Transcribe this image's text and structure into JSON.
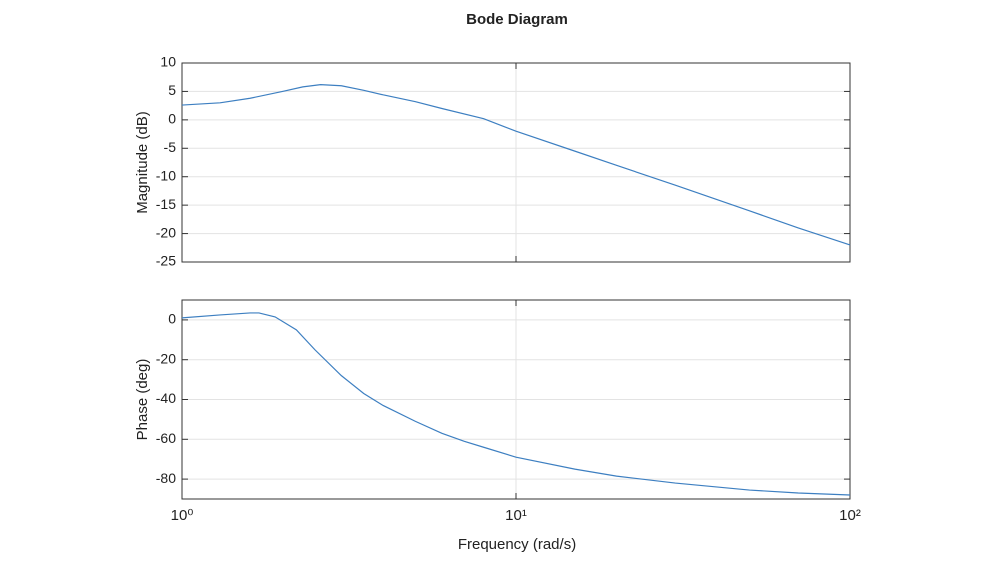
{
  "chart_data": [
    {
      "type": "line",
      "title": "Bode Diagram",
      "ylabel": "Magnitude (dB)",
      "xscale": "log",
      "grid": true,
      "xlim": [
        1,
        100
      ],
      "xticks": [
        1,
        10,
        100
      ],
      "ylim": [
        -25,
        10
      ],
      "yticks": [
        -25,
        -20,
        -15,
        -10,
        -5,
        0,
        5,
        10
      ],
      "x": [
        1,
        1.3,
        1.6,
        2,
        2.3,
        2.6,
        3,
        3.5,
        4,
        5,
        6,
        8,
        10,
        15,
        20,
        30,
        50,
        70,
        100
      ],
      "series": [
        {
          "color": "#3d7fc1",
          "values": [
            2.6,
            3.0,
            3.8,
            5.0,
            5.8,
            6.2,
            6.0,
            5.2,
            4.4,
            3.2,
            2.0,
            0.2,
            -2.0,
            -5.5,
            -8.0,
            -11.5,
            -16.0,
            -19.0,
            -22.0
          ]
        }
      ]
    },
    {
      "type": "line",
      "ylabel": "Phase (deg)",
      "xlabel": "Frequency (rad/s)",
      "xscale": "log",
      "grid": true,
      "xlim": [
        1,
        100
      ],
      "xticks": [
        {
          "value": 1,
          "label": "10⁰"
        },
        {
          "value": 10,
          "label": "10¹"
        },
        {
          "value": 100,
          "label": "10²"
        }
      ],
      "ylim": [
        -90,
        10
      ],
      "yticks": [
        -80,
        -60,
        -40,
        -20,
        0
      ],
      "x": [
        1,
        1.3,
        1.6,
        1.7,
        1.9,
        2.2,
        2.5,
        3,
        3.5,
        4,
        5,
        6,
        7,
        8,
        10,
        15,
        20,
        30,
        50,
        70,
        100
      ],
      "series": [
        {
          "color": "#3d7fc1",
          "values": [
            1,
            2.5,
            3.5,
            3.5,
            1.5,
            -5,
            -15,
            -28,
            -37,
            -43,
            -51,
            -57,
            -61,
            -64,
            -69,
            -75,
            -78.5,
            -82,
            -85.5,
            -87,
            -88
          ]
        }
      ]
    }
  ]
}
